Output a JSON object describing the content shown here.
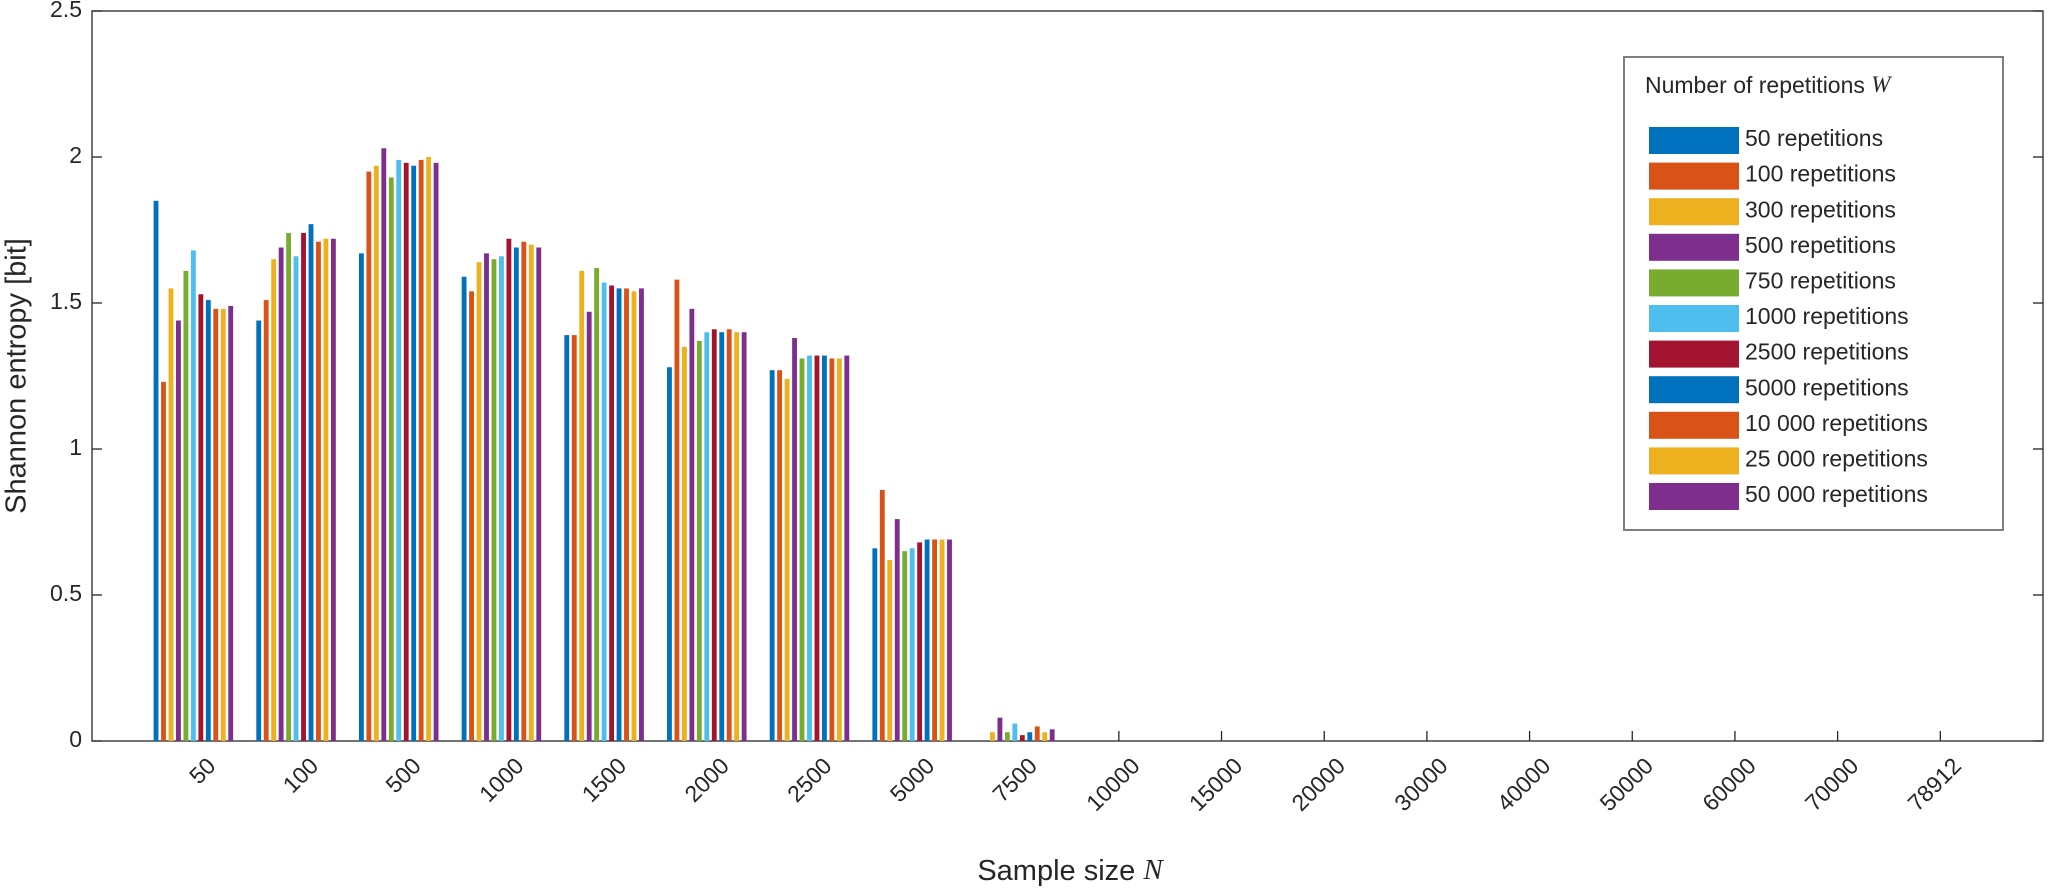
{
  "chart_data": {
    "type": "bar",
    "xlabel": "Sample size",
    "xlabel_var": "N",
    "ylabel": "Shannon entropy [bit]",
    "legend_title": "Number of repetitions",
    "legend_title_var": "W",
    "legend_position": "upper right",
    "categories": [
      "50",
      "100",
      "500",
      "1000",
      "1500",
      "2000",
      "2500",
      "5000",
      "7500",
      "10000",
      "15000",
      "20000",
      "30000",
      "40000",
      "50000",
      "60000",
      "70000",
      "78912"
    ],
    "ylim": [
      0,
      2.5
    ],
    "yticks": [
      0,
      0.5,
      1,
      1.5,
      2,
      2.5
    ],
    "series": [
      {
        "name": "50 repetitions",
        "color": "#0072BD",
        "values": [
          1.85,
          1.44,
          1.67,
          1.59,
          1.39,
          1.28,
          1.27,
          0.66,
          0,
          0,
          0,
          0,
          0,
          0,
          0,
          0,
          0,
          0
        ]
      },
      {
        "name": "100 repetitions",
        "color": "#D95319",
        "values": [
          1.23,
          1.51,
          1.95,
          1.54,
          1.39,
          1.58,
          1.27,
          0.86,
          0,
          0,
          0,
          0,
          0,
          0,
          0,
          0,
          0,
          0
        ]
      },
      {
        "name": "300 repetitions",
        "color": "#EDB120",
        "values": [
          1.55,
          1.65,
          1.97,
          1.64,
          1.61,
          1.35,
          1.24,
          0.62,
          0.03,
          0,
          0,
          0,
          0,
          0,
          0,
          0,
          0,
          0
        ]
      },
      {
        "name": "500 repetitions",
        "color": "#7E2F8E",
        "values": [
          1.44,
          1.69,
          2.03,
          1.67,
          1.47,
          1.48,
          1.38,
          0.76,
          0.08,
          0,
          0,
          0,
          0,
          0,
          0,
          0,
          0,
          0
        ]
      },
      {
        "name": "750 repetitions",
        "color": "#77AC30",
        "values": [
          1.61,
          1.74,
          1.93,
          1.65,
          1.62,
          1.37,
          1.31,
          0.65,
          0.03,
          0,
          0,
          0,
          0,
          0,
          0,
          0,
          0,
          0
        ]
      },
      {
        "name": "1000 repetitions",
        "color": "#4DBEEE",
        "values": [
          1.68,
          1.66,
          1.99,
          1.66,
          1.57,
          1.4,
          1.32,
          0.66,
          0.06,
          0,
          0,
          0,
          0,
          0,
          0,
          0,
          0,
          0
        ]
      },
      {
        "name": "2500 repetitions",
        "color": "#A2142F",
        "values": [
          1.53,
          1.74,
          1.98,
          1.72,
          1.56,
          1.41,
          1.32,
          0.68,
          0.02,
          0,
          0,
          0,
          0,
          0,
          0,
          0,
          0,
          0
        ]
      },
      {
        "name": "5000 repetitions",
        "color": "#0072BD",
        "values": [
          1.51,
          1.77,
          1.97,
          1.69,
          1.55,
          1.4,
          1.32,
          0.69,
          0.03,
          0,
          0,
          0,
          0,
          0,
          0,
          0,
          0,
          0
        ]
      },
      {
        "name": "10 000 repetitions",
        "color": "#D95319",
        "values": [
          1.48,
          1.71,
          1.99,
          1.71,
          1.55,
          1.41,
          1.31,
          0.69,
          0.05,
          0,
          0,
          0,
          0,
          0,
          0,
          0,
          0,
          0
        ]
      },
      {
        "name": "25 000 repetitions",
        "color": "#EDB120",
        "values": [
          1.48,
          1.72,
          2.0,
          1.7,
          1.54,
          1.4,
          1.31,
          0.69,
          0.03,
          0,
          0,
          0,
          0,
          0,
          0,
          0,
          0,
          0
        ]
      },
      {
        "name": "50 000 repetitions",
        "color": "#7E2F8E",
        "values": [
          1.49,
          1.72,
          1.98,
          1.69,
          1.55,
          1.4,
          1.32,
          0.69,
          0.04,
          0,
          0,
          0,
          0,
          0,
          0,
          0,
          0,
          0
        ]
      }
    ]
  }
}
